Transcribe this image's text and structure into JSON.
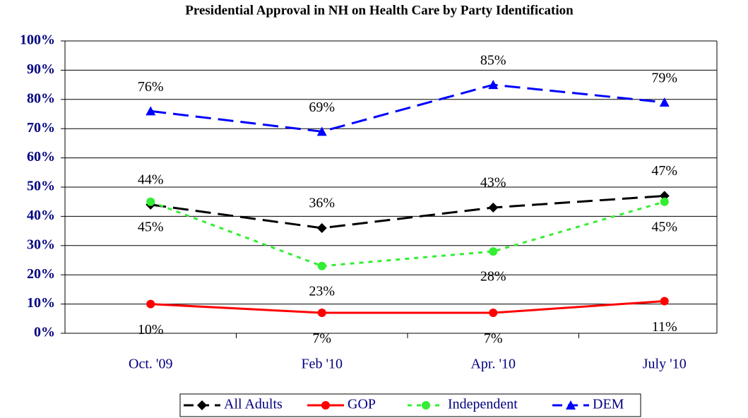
{
  "chart_data": {
    "type": "line",
    "title": "Presidential Approval in NH on Health Care by Party Identification",
    "categories": [
      "Oct. '09",
      "Feb '10",
      "Apr. '10",
      "July '10"
    ],
    "series": [
      {
        "name": "All Adults",
        "color": "#000000",
        "marker": "diamond",
        "dash": "dashed",
        "values": [
          44,
          36,
          43,
          47
        ],
        "value_labels": [
          "44%",
          "36%",
          "43%",
          "47%"
        ]
      },
      {
        "name": "GOP",
        "color": "#ff0000",
        "marker": "circle",
        "dash": "solid",
        "values": [
          10,
          7,
          7,
          11
        ],
        "value_labels": [
          "10%",
          "7%",
          "7%",
          "11%"
        ]
      },
      {
        "name": "Independent",
        "color": "#33ee33",
        "marker": "circle",
        "dash": "dotted",
        "values": [
          45,
          23,
          28,
          45
        ],
        "value_labels": [
          "45%",
          "23%",
          "28%",
          "45%"
        ]
      },
      {
        "name": "DEM",
        "color": "#0000ff",
        "marker": "triangle",
        "dash": "dashed",
        "values": [
          76,
          69,
          85,
          79
        ],
        "value_labels": [
          "76%",
          "69%",
          "85%",
          "79%"
        ]
      }
    ],
    "ylim": [
      0,
      100
    ],
    "yticks": [
      {
        "value": 0,
        "label": "0%"
      },
      {
        "value": 10,
        "label": "10%"
      },
      {
        "value": 20,
        "label": "20%"
      },
      {
        "value": 30,
        "label": "30%"
      },
      {
        "value": 40,
        "label": "40%"
      },
      {
        "value": 50,
        "label": "50%"
      },
      {
        "value": 60,
        "label": "60%"
      },
      {
        "value": 70,
        "label": "70%"
      },
      {
        "value": 80,
        "label": "80%"
      },
      {
        "value": 90,
        "label": "90%"
      },
      {
        "value": 100,
        "label": "100%"
      }
    ],
    "grid": true,
    "legend": "bottom"
  }
}
